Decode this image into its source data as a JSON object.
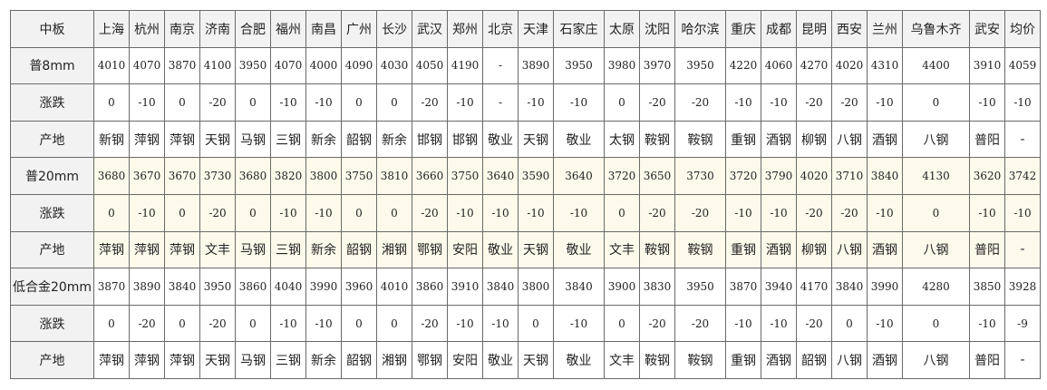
{
  "table": {
    "corner": "中板",
    "columns": [
      "上海",
      "杭州",
      "南京",
      "济南",
      "合肥",
      "福州",
      "南昌",
      "广州",
      "长沙",
      "武汉",
      "郑州",
      "北京",
      "天津",
      "石家庄",
      "太原",
      "沈阳",
      "哈尔滨",
      "重庆",
      "成都",
      "昆明",
      "西安",
      "兰州",
      "乌鲁木齐",
      "武安",
      "均价"
    ],
    "rows": [
      {
        "label": "普8mm",
        "type": "num",
        "highlight": false,
        "cells": [
          "4010",
          "4070",
          "3870",
          "4100",
          "3950",
          "4070",
          "4000",
          "4090",
          "4030",
          "4050",
          "4190",
          "-",
          "3890",
          "3950",
          "3980",
          "3970",
          "3950",
          "4220",
          "4060",
          "4270",
          "4020",
          "4310",
          "4400",
          "3910",
          "4059"
        ]
      },
      {
        "label": "涨跌",
        "type": "num",
        "highlight": false,
        "cells": [
          "0",
          "-10",
          "0",
          "-20",
          "0",
          "-10",
          "-10",
          "0",
          "0",
          "-20",
          "-10",
          "-",
          "-10",
          "-10",
          "0",
          "-20",
          "-20",
          "-10",
          "-10",
          "-20",
          "-20",
          "-10",
          "0",
          "-10",
          "-10"
        ]
      },
      {
        "label": "产地",
        "type": "txt",
        "highlight": false,
        "cells": [
          "新钢",
          "萍钢",
          "萍钢",
          "天钢",
          "马钢",
          "三钢",
          "新余",
          "韶钢",
          "新余",
          "邯钢",
          "邯钢",
          "敬业",
          "天钢",
          "敬业",
          "太钢",
          "鞍钢",
          "鞍钢",
          "重钢",
          "酒钢",
          "柳钢",
          "八钢",
          "酒钢",
          "八钢",
          "普阳",
          "-"
        ]
      },
      {
        "label": "普20mm",
        "type": "num",
        "highlight": true,
        "cells": [
          "3680",
          "3670",
          "3670",
          "3730",
          "3680",
          "3820",
          "3800",
          "3750",
          "3810",
          "3660",
          "3750",
          "3640",
          "3590",
          "3640",
          "3720",
          "3650",
          "3730",
          "3720",
          "3790",
          "4020",
          "3710",
          "3840",
          "4130",
          "3620",
          "3742"
        ]
      },
      {
        "label": "涨跌",
        "type": "num",
        "highlight": true,
        "cells": [
          "0",
          "-10",
          "0",
          "-20",
          "0",
          "-10",
          "-10",
          "0",
          "0",
          "-20",
          "-10",
          "-10",
          "-10",
          "-10",
          "0",
          "-20",
          "-20",
          "-10",
          "-10",
          "-20",
          "-20",
          "-10",
          "0",
          "-10",
          "-10"
        ]
      },
      {
        "label": "产地",
        "type": "txt",
        "highlight": true,
        "cells": [
          "萍钢",
          "萍钢",
          "萍钢",
          "文丰",
          "马钢",
          "三钢",
          "新余",
          "韶钢",
          "湘钢",
          "鄂钢",
          "安阳",
          "敬业",
          "天钢",
          "敬业",
          "文丰",
          "鞍钢",
          "鞍钢",
          "重钢",
          "酒钢",
          "柳钢",
          "八钢",
          "酒钢",
          "八钢",
          "普阳",
          "-"
        ]
      },
      {
        "label": "低合金20mm",
        "type": "num",
        "highlight": false,
        "cells": [
          "3870",
          "3890",
          "3840",
          "3950",
          "3860",
          "4040",
          "3990",
          "3960",
          "4010",
          "3860",
          "3910",
          "3840",
          "3800",
          "3840",
          "3900",
          "3830",
          "3950",
          "3870",
          "3940",
          "4170",
          "3840",
          "3990",
          "4280",
          "3850",
          "3928"
        ]
      },
      {
        "label": "涨跌",
        "type": "num",
        "highlight": false,
        "cells": [
          "0",
          "-20",
          "0",
          "-20",
          "0",
          "-10",
          "-10",
          "0",
          "0",
          "-20",
          "-10",
          "-10",
          "0",
          "-10",
          "0",
          "-20",
          "-20",
          "-10",
          "-10",
          "-20",
          "0",
          "-10",
          "0",
          "-10",
          "-9"
        ]
      },
      {
        "label": "产地",
        "type": "txt",
        "highlight": false,
        "cells": [
          "萍钢",
          "萍钢",
          "萍钢",
          "天钢",
          "马钢",
          "三钢",
          "新余",
          "韶钢",
          "湘钢",
          "鄂钢",
          "安阳",
          "敬业",
          "天钢",
          "敬业",
          "文丰",
          "鞍钢",
          "鞍钢",
          "重钢",
          "酒钢",
          "韶钢",
          "八钢",
          "酒钢",
          "八钢",
          "普阳",
          "-"
        ]
      }
    ]
  }
}
